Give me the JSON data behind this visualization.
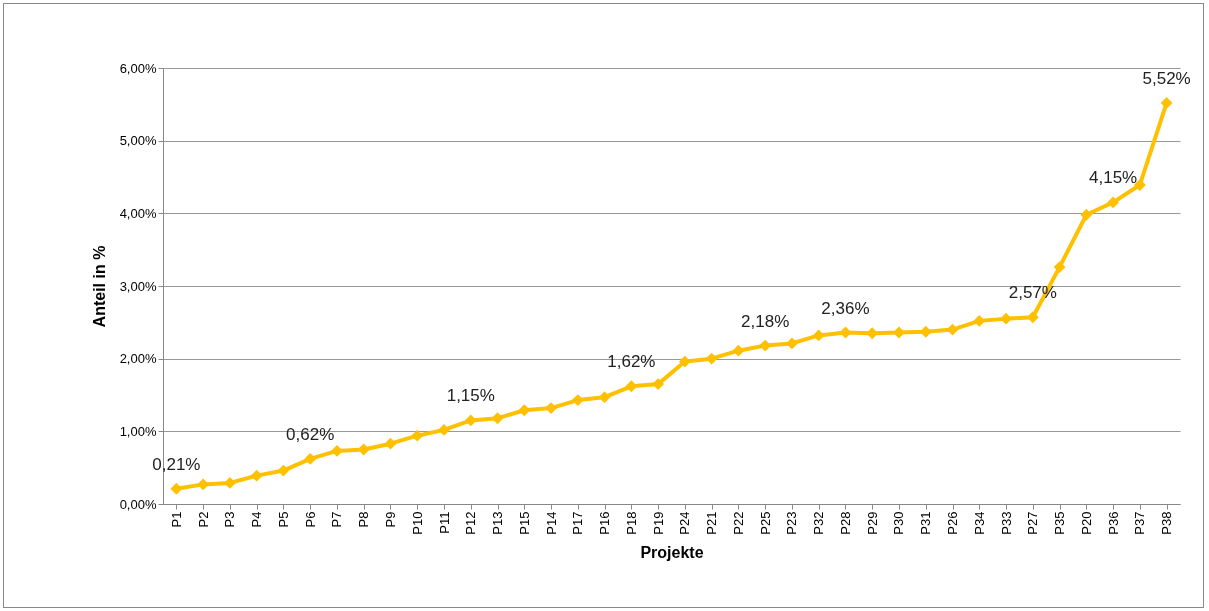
{
  "chart_data": {
    "type": "line",
    "xlabel": "Projekte",
    "ylabel": "Anteil in %",
    "categories": [
      "P1",
      "P2",
      "P3",
      "P4",
      "P5",
      "P6",
      "P7",
      "P8",
      "P9",
      "P10",
      "P11",
      "P12",
      "P13",
      "P15",
      "P14",
      "P17",
      "P16",
      "P18",
      "P19",
      "P24",
      "P21",
      "P22",
      "P25",
      "P23",
      "P32",
      "P28",
      "P29",
      "P30",
      "P31",
      "P26",
      "P34",
      "P33",
      "P27",
      "P35",
      "P20",
      "P36",
      "P37",
      "P38"
    ],
    "series": [
      {
        "color": "#ffc000",
        "values": [
          0.21,
          0.27,
          0.29,
          0.39,
          0.46,
          0.62,
          0.73,
          0.75,
          0.83,
          0.94,
          1.02,
          1.15,
          1.18,
          1.29,
          1.32,
          1.43,
          1.47,
          1.62,
          1.65,
          1.96,
          2.0,
          2.11,
          2.18,
          2.21,
          2.32,
          2.36,
          2.35,
          2.36,
          2.37,
          2.4,
          2.52,
          2.55,
          2.57,
          3.26,
          3.98,
          4.15,
          4.39,
          5.52
        ],
        "value_labels": [
          "0,21%",
          null,
          null,
          null,
          null,
          "0,62%",
          null,
          null,
          null,
          null,
          null,
          "1,15%",
          null,
          null,
          null,
          null,
          null,
          "1,62%",
          null,
          null,
          null,
          null,
          "2,18%",
          null,
          null,
          "2,36%",
          null,
          null,
          null,
          null,
          null,
          null,
          "2,57%",
          null,
          null,
          "4,15%",
          null,
          "5,52%"
        ]
      }
    ],
    "ylim": [
      0,
      6
    ],
    "yticks": [
      {
        "value": 0,
        "label": "0,00%"
      },
      {
        "value": 1,
        "label": "1,00%"
      },
      {
        "value": 2,
        "label": "2,00%"
      },
      {
        "value": 3,
        "label": "3,00%"
      },
      {
        "value": 4,
        "label": "4,00%"
      },
      {
        "value": 5,
        "label": "5,00%"
      },
      {
        "value": 6,
        "label": "6,00%"
      }
    ],
    "grid": "y",
    "marker": "diamond",
    "line_style": "solid"
  }
}
